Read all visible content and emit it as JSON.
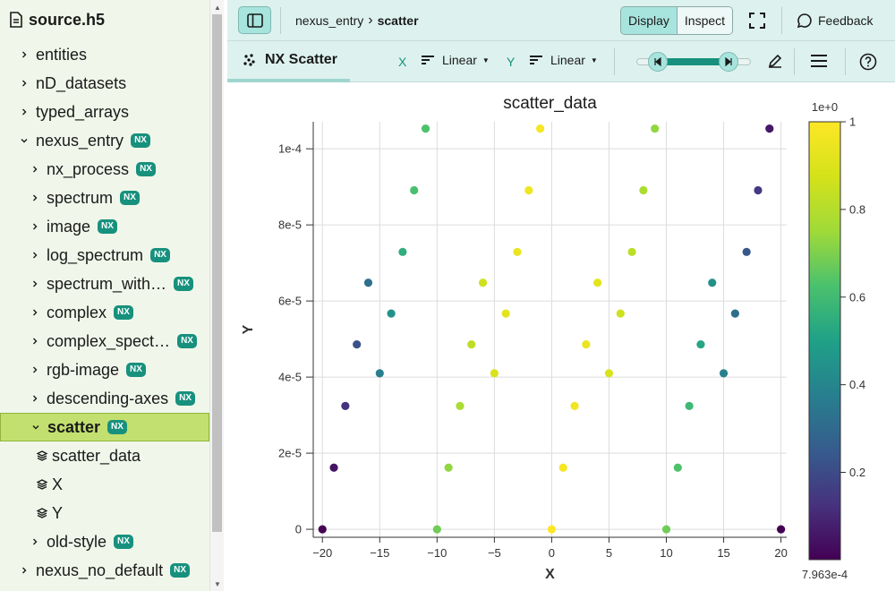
{
  "file_name": "source.h5",
  "tree": [
    {
      "label": "entities",
      "nx": false
    },
    {
      "label": "nD_datasets",
      "nx": false
    },
    {
      "label": "typed_arrays",
      "nx": false
    },
    {
      "label": "nexus_entry",
      "nx": true
    },
    {
      "label": "nx_process",
      "nx": true
    },
    {
      "label": "spectrum",
      "nx": true
    },
    {
      "label": "image",
      "nx": true
    },
    {
      "label": "log_spectrum",
      "nx": true
    },
    {
      "label": "spectrum_with…",
      "nx": true
    },
    {
      "label": "complex",
      "nx": true
    },
    {
      "label": "complex_spect…",
      "nx": true
    },
    {
      "label": "rgb-image",
      "nx": true
    },
    {
      "label": "descending-axes",
      "nx": true
    },
    {
      "label": "scatter",
      "nx": true
    },
    {
      "label": "scatter_data",
      "nx": false
    },
    {
      "label": "X",
      "nx": false
    },
    {
      "label": "Y",
      "nx": false
    },
    {
      "label": "old-style",
      "nx": true
    },
    {
      "label": "nexus_no_default",
      "nx": true
    }
  ],
  "nx_badge": "NX",
  "breadcrumb": {
    "parent": "nexus_entry",
    "current": "scatter"
  },
  "mode": {
    "display": "Display",
    "inspect": "Inspect"
  },
  "feedback_label": "Feedback",
  "vis_tab": "NX Scatter",
  "x_axis": {
    "label": "X",
    "scale": "Linear"
  },
  "y_axis": {
    "label": "Y",
    "scale": "Linear"
  },
  "icons": {
    "file": "file-icon",
    "sidebar_toggle": "sidebar-toggle-icon",
    "fullscreen": "fullscreen-icon",
    "feedback": "chat-icon",
    "scatter": "scatter-icon",
    "edit": "pencil-icon",
    "menu": "menu-icon",
    "help": "help-icon"
  },
  "chart_data": {
    "type": "scatter",
    "title": "scatter_data",
    "xlabel": "X",
    "ylabel": "Y",
    "xlim": [
      -20.8,
      20.5
    ],
    "ylim": [
      -2.1e-06,
      0.0001071
    ],
    "xticks": [
      -20,
      -15,
      -10,
      -5,
      0,
      5,
      10,
      15,
      20
    ],
    "xtick_labels": [
      "−20",
      "−15",
      "−10",
      "−5",
      "0",
      "5",
      "10",
      "15",
      "20"
    ],
    "yticks": [
      0,
      2e-05,
      4e-05,
      6e-05,
      8e-05,
      0.0001
    ],
    "ytick_labels": [
      "0",
      "2e-5",
      "4e-5",
      "6e-5",
      "8e-5",
      "1e-4"
    ],
    "grid": true,
    "colormap": "viridis",
    "colorbar": {
      "exponent_label": "1e+0",
      "min_label": "7.963e-4",
      "range": [
        0.0007963,
        1
      ],
      "ticks": [
        0.2,
        0.4,
        0.6,
        0.8,
        1
      ],
      "tick_labels": [
        "0.2",
        "0.4",
        "0.6",
        "0.8",
        "1"
      ]
    },
    "points": [
      {
        "x": -20,
        "y": 0,
        "v": 0.0008
      },
      {
        "x": -19,
        "y": 1.62e-05,
        "v": 0.05
      },
      {
        "x": -18,
        "y": 3.24e-05,
        "v": 0.13
      },
      {
        "x": -17,
        "y": 4.86e-05,
        "v": 0.22
      },
      {
        "x": -16,
        "y": 6.48e-05,
        "v": 0.32
      },
      {
        "x": -15,
        "y": 4.1e-05,
        "v": 0.38
      },
      {
        "x": -14,
        "y": 5.67e-05,
        "v": 0.44
      },
      {
        "x": -13,
        "y": 7.29e-05,
        "v": 0.55
      },
      {
        "x": -12,
        "y": 8.91e-05,
        "v": 0.62
      },
      {
        "x": -11,
        "y": 0.0001053,
        "v": 0.63
      },
      {
        "x": -10,
        "y": 0,
        "v": 0.68
      },
      {
        "x": -9,
        "y": 1.62e-05,
        "v": 0.73
      },
      {
        "x": -8,
        "y": 3.24e-05,
        "v": 0.78
      },
      {
        "x": -7,
        "y": 4.86e-05,
        "v": 0.82
      },
      {
        "x": -6,
        "y": 6.48e-05,
        "v": 0.86
      },
      {
        "x": -5,
        "y": 4.1e-05,
        "v": 0.89
      },
      {
        "x": -4,
        "y": 5.67e-05,
        "v": 0.92
      },
      {
        "x": -3,
        "y": 7.29e-05,
        "v": 0.94
      },
      {
        "x": -2,
        "y": 8.91e-05,
        "v": 0.96
      },
      {
        "x": -1,
        "y": 0.0001053,
        "v": 0.98
      },
      {
        "x": 0,
        "y": 0,
        "v": 1
      },
      {
        "x": 1,
        "y": 1.62e-05,
        "v": 0.98
      },
      {
        "x": 2,
        "y": 3.24e-05,
        "v": 0.96
      },
      {
        "x": 3,
        "y": 4.86e-05,
        "v": 0.94
      },
      {
        "x": 4,
        "y": 6.48e-05,
        "v": 0.92
      },
      {
        "x": 5,
        "y": 4.1e-05,
        "v": 0.89
      },
      {
        "x": 6,
        "y": 5.67e-05,
        "v": 0.86
      },
      {
        "x": 7,
        "y": 7.29e-05,
        "v": 0.82
      },
      {
        "x": 8,
        "y": 8.91e-05,
        "v": 0.78
      },
      {
        "x": 9,
        "y": 0.0001053,
        "v": 0.73
      },
      {
        "x": 10,
        "y": 0,
        "v": 0.68
      },
      {
        "x": 11,
        "y": 1.62e-05,
        "v": 0.63
      },
      {
        "x": 12,
        "y": 3.24e-05,
        "v": 0.59
      },
      {
        "x": 13,
        "y": 4.86e-05,
        "v": 0.52
      },
      {
        "x": 14,
        "y": 6.48e-05,
        "v": 0.44
      },
      {
        "x": 15,
        "y": 4.1e-05,
        "v": 0.38
      },
      {
        "x": 16,
        "y": 5.67e-05,
        "v": 0.32
      },
      {
        "x": 17,
        "y": 7.29e-05,
        "v": 0.24
      },
      {
        "x": 18,
        "y": 8.91e-05,
        "v": 0.15
      },
      {
        "x": 19,
        "y": 0.0001053,
        "v": 0.06
      },
      {
        "x": 20,
        "y": 0,
        "v": 0.0008
      }
    ]
  }
}
